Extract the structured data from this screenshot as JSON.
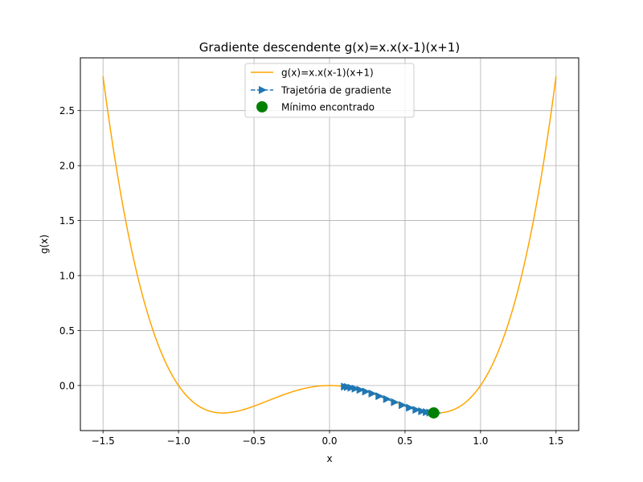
{
  "chart_data": {
    "type": "line",
    "title": "Gradiente descendente g(x)=x.x(x-1)(x+1)",
    "xlabel": "x",
    "ylabel": "g(x)",
    "xlim": [
      -1.65,
      1.65
    ],
    "ylim": [
      -0.41,
      2.98
    ],
    "xticks": [
      -1.5,
      -1.0,
      -0.5,
      0.0,
      0.5,
      1.0,
      1.5
    ],
    "xtick_labels": [
      "−1.5",
      "−1.0",
      "−0.5",
      "0.0",
      "0.5",
      "1.0",
      "1.5"
    ],
    "yticks": [
      0.0,
      0.5,
      1.0,
      1.5,
      2.0,
      2.5
    ],
    "ytick_labels": [
      "0.0",
      "0.5",
      "1.0",
      "1.5",
      "2.0",
      "2.5"
    ],
    "grid": true,
    "legend_position": "top-center",
    "series": [
      {
        "name": "g(x)=x.x(x-1)(x+1)",
        "style": "line",
        "color": "#ffa500",
        "function": "x^4 - x^2",
        "x_range": [
          -1.5,
          1.5
        ]
      },
      {
        "name": "Trajetória de gradiente",
        "style": "dashed-triangle-markers",
        "color": "#1f77b4",
        "x": [
          0.1,
          0.1196,
          0.143,
          0.1706,
          0.2029,
          0.2401,
          0.2823,
          0.3289,
          0.379,
          0.4307,
          0.4819,
          0.5304,
          0.574,
          0.6114,
          0.6419,
          0.6655,
          0.683,
          0.6955,
          0.7042,
          0.71
        ],
        "y": [
          -0.0099,
          -0.0141,
          -0.02,
          -0.0283,
          -0.0395,
          -0.0543,
          -0.0733,
          -0.0965,
          -0.123,
          -0.1511,
          -0.1783,
          -0.2022,
          -0.2209,
          -0.2338,
          -0.2423,
          -0.2467,
          -0.2489,
          -0.2497,
          -0.25,
          -0.25
        ]
      },
      {
        "name": "Mínimo encontrado",
        "style": "marker",
        "color": "#008000",
        "x": [
          0.69
        ],
        "y": [
          -0.249
        ]
      }
    ]
  }
}
